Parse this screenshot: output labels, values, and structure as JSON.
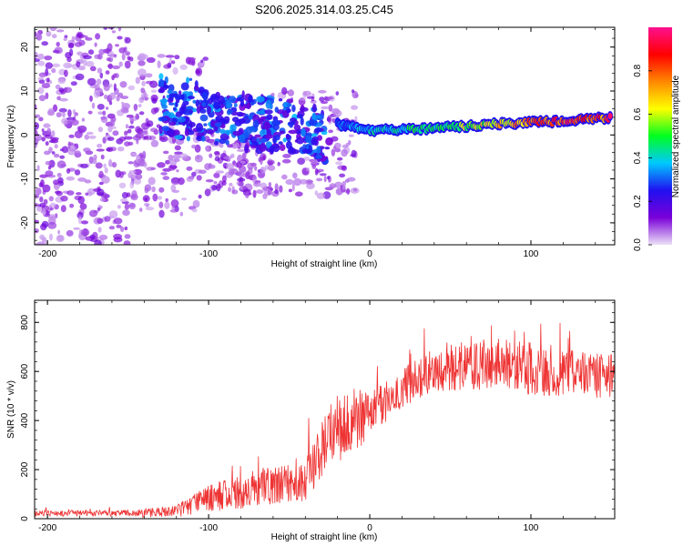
{
  "title": "S206.2025.314.03.25.C45",
  "chart_data": [
    {
      "type": "heatmap",
      "xlabel": "Height of straight line (km)",
      "ylabel": "Frequency (Hz)",
      "xlim": [
        -208,
        152
      ],
      "ylim": [
        -25,
        24.5
      ],
      "x_ticks": [
        -200,
        -100,
        0,
        100
      ],
      "x_tick_labels": [
        "-200",
        "-100",
        "0",
        "100"
      ],
      "y_ticks": [
        -20,
        -10,
        0,
        10,
        20
      ],
      "y_tick_labels": [
        "-20",
        "-10",
        "0",
        "10",
        "20"
      ],
      "colorbar": {
        "label": "Normalized spectral amplitude",
        "range": [
          0,
          1
        ],
        "ticks": [
          0.0,
          0.2,
          0.4,
          0.6,
          0.8
        ],
        "tick_labels": [
          "0.0",
          "0.2",
          "0.4",
          "0.6",
          "0.8"
        ],
        "colors": [
          "#ece2f8",
          "#7a00d8",
          "#2010f0",
          "#00c8ff",
          "#00ff20",
          "#ffff00",
          "#ff8800",
          "#ff0000",
          "#ff1090"
        ]
      },
      "ridge": {
        "x": [
          -20,
          0,
          20,
          40,
          60,
          80,
          100,
          120,
          150
        ],
        "frequency": [
          2.5,
          1.0,
          1.2,
          1.5,
          2.0,
          2.5,
          2.8,
          3.2,
          4.0
        ],
        "amplitude": [
          0.35,
          0.45,
          0.5,
          0.55,
          0.65,
          0.75,
          0.85,
          0.95,
          1.0
        ]
      },
      "scatter_region": {
        "x": [
          -208,
          -20
        ],
        "frequency": [
          -25,
          24.5
        ]
      }
    },
    {
      "type": "line",
      "xlabel": "Height of straight line (km)",
      "ylabel": "SNR (10 * v/v)",
      "xlim": [
        -208,
        152
      ],
      "ylim": [
        0,
        890
      ],
      "x_ticks": [
        -200,
        -100,
        0,
        100
      ],
      "x_tick_labels": [
        "-200",
        "-100",
        "0",
        "100"
      ],
      "y_ticks": [
        0,
        200,
        400,
        600,
        800
      ],
      "y_tick_labels": [
        "0",
        "200",
        "400",
        "600",
        "800"
      ],
      "color": "#ee3333",
      "series": [
        {
          "name": "SNR",
          "x": [
            -208,
            -180,
            -150,
            -140,
            -120,
            -110,
            -100,
            -80,
            -60,
            -40,
            -30,
            -20,
            -10,
            0,
            10,
            20,
            30,
            40,
            60,
            80,
            100,
            110,
            130,
            150
          ],
          "mean": [
            22,
            22,
            22,
            22,
            30,
            55,
            85,
            110,
            140,
            165,
            290,
            380,
            400,
            420,
            475,
            530,
            575,
            600,
            625,
            630,
            610,
            600,
            590,
            580
          ],
          "noise": [
            12,
            12,
            14,
            18,
            25,
            40,
            55,
            70,
            80,
            95,
            140,
            150,
            130,
            100,
            80,
            80,
            85,
            90,
            100,
            110,
            110,
            100,
            95,
            90
          ]
        }
      ]
    }
  ]
}
